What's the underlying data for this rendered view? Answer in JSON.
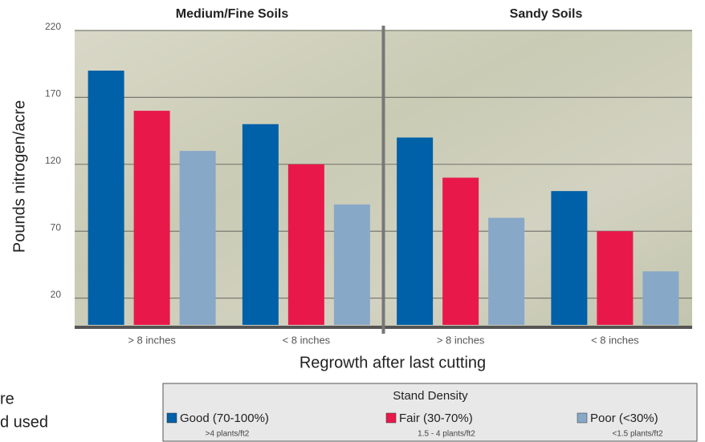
{
  "chart_data": {
    "type": "bar",
    "group_labels": [
      "Medium/Fine Soils",
      "Sandy Soils"
    ],
    "categories": [
      "> 8 inches",
      "< 8 inches",
      "> 8 inches",
      "< 8 inches"
    ],
    "series": [
      {
        "name": "Good (70-100%)",
        "sublabel": ">4 plants/ft2",
        "color": "#0060a8",
        "values": [
          190,
          150,
          140,
          100
        ]
      },
      {
        "name": "Fair (30-70%)",
        "sublabel": "1.5 - 4 plants/ft2",
        "color": "#e8194a",
        "values": [
          160,
          120,
          110,
          70
        ]
      },
      {
        "name": "Poor (<30%)",
        "sublabel": "<1.5 plants/ft2",
        "color": "#88a8c8",
        "values": [
          130,
          90,
          80,
          40
        ]
      }
    ],
    "y_label": "Pounds nitrogen/acre",
    "x_label": "Regrowth after last cutting",
    "legend_title": "Stand Density",
    "ylim": [
      0,
      220
    ],
    "yticks": [
      20,
      70,
      120,
      170,
      220
    ],
    "grid": true
  },
  "page_fragments": [
    "re",
    "d used"
  ]
}
